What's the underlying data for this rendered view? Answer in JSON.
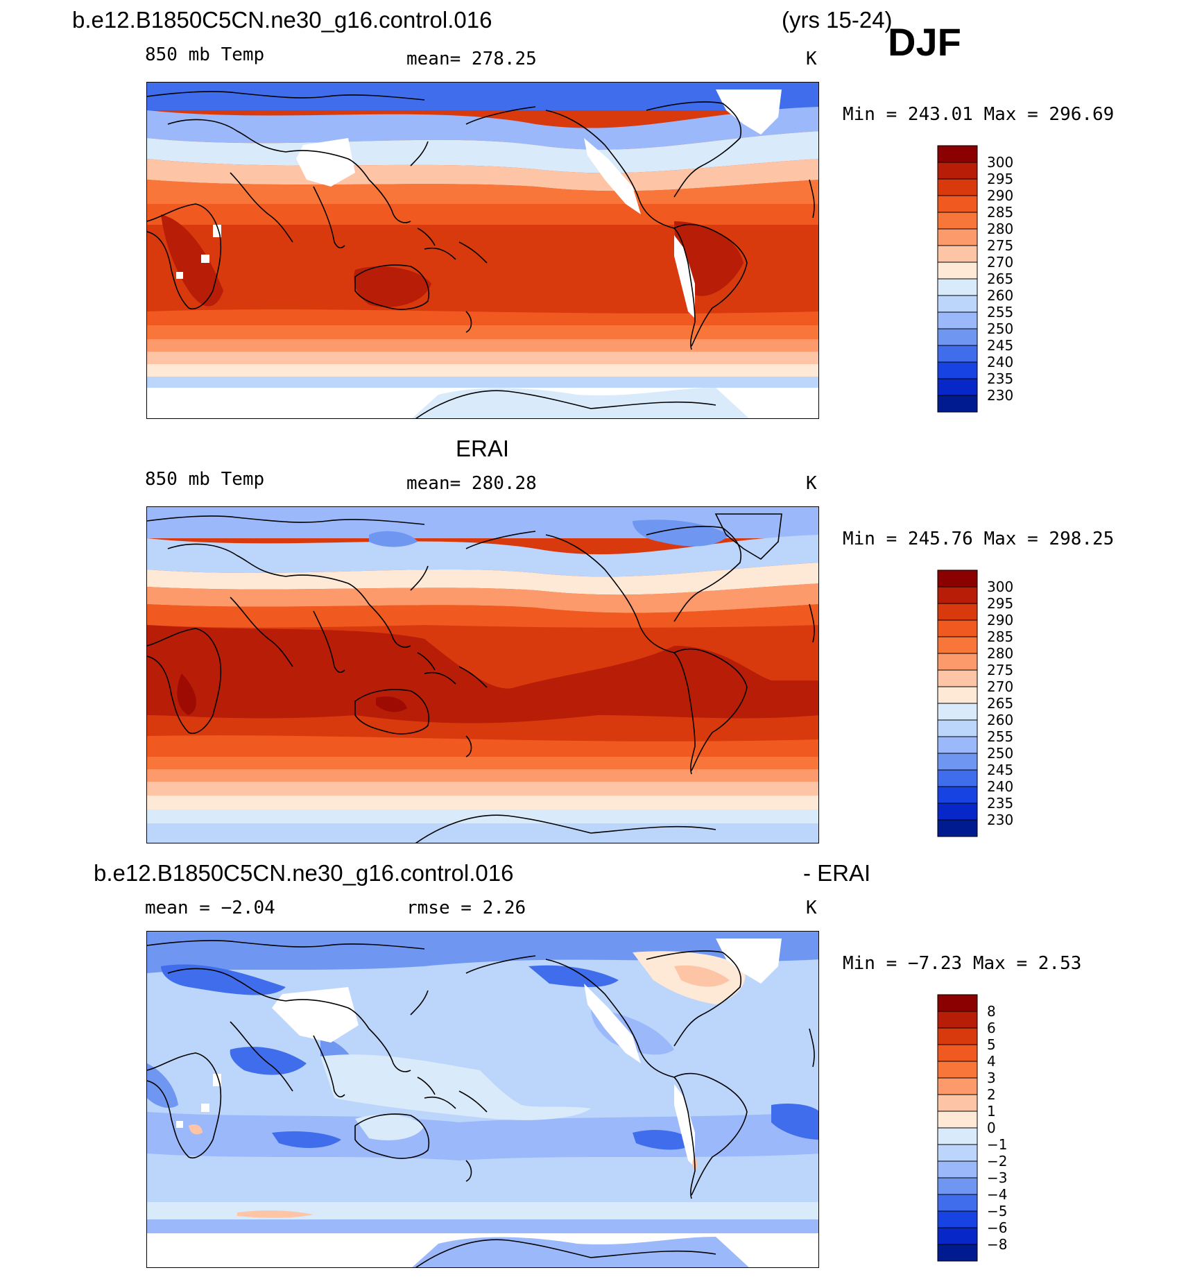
{
  "figure": {
    "season": "DJF",
    "panels": [
      {
        "id": "model",
        "title_left": "b.e12.B1850C5CN.ne30_g16.control.016",
        "title_right": "(yrs 15-24)",
        "variable": "850 mb Temp",
        "stat": "mean=  278.25",
        "units": "K",
        "minmax": "Min  =  243.01  Max  =  296.69"
      },
      {
        "id": "obs",
        "title_center": "ERAI",
        "variable": "850 mb Temp",
        "stat": "mean=  280.28",
        "units": "K",
        "minmax": "Min  =  245.76  Max  =  298.25"
      },
      {
        "id": "diff",
        "title_left": "b.e12.B1850C5CN.ne30_g16.control.016",
        "title_right": "- ERAI",
        "stat": "mean  =    −2.04",
        "stat2": "rmse  =     2.26",
        "units": "K",
        "minmax": "Min  =    −7.23  Max  =      2.53"
      }
    ],
    "temp_levels": [
      "300",
      "295",
      "290",
      "285",
      "280",
      "275",
      "270",
      "265",
      "260",
      "255",
      "250",
      "245",
      "240",
      "235",
      "230"
    ],
    "diff_levels": [
      "8",
      "6",
      "5",
      "4",
      "3",
      "2",
      "1",
      "0",
      "−1",
      "−2",
      "−3",
      "−4",
      "−5",
      "−6",
      "−8"
    ],
    "colors": [
      "#8b0000",
      "#b81d07",
      "#d93a0d",
      "#f05a20",
      "#f8763a",
      "#fc9a6b",
      "#fdc4a5",
      "#fee9d7",
      "#d9eafa",
      "#bcd5fb",
      "#9ab8fa",
      "#6f97f2",
      "#3f6deb",
      "#1843e3",
      "#0727c8",
      "#001a8f"
    ]
  }
}
